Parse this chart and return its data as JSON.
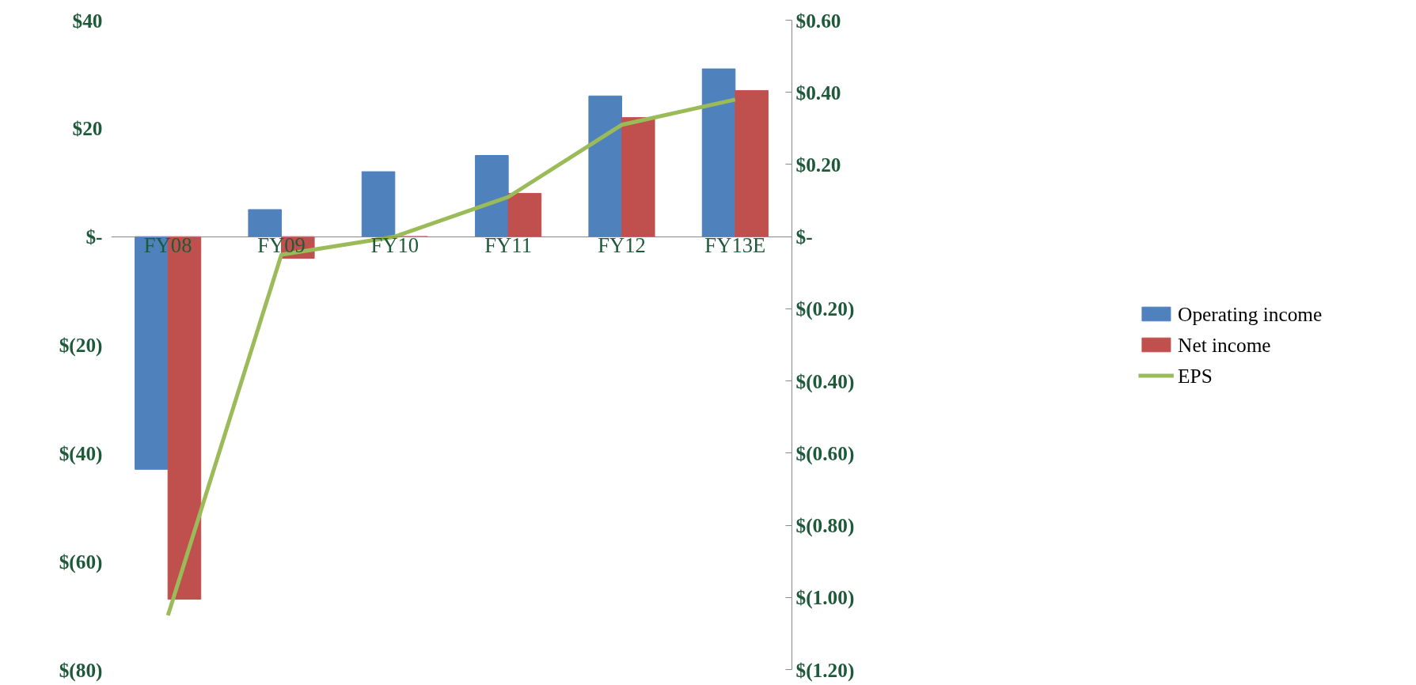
{
  "chart_data": {
    "type": "bar",
    "categories": [
      "FY08",
      "FY09",
      "FY10",
      "FY11",
      "FY12",
      "FY13E"
    ],
    "series": [
      {
        "name": "Operating income",
        "color": "#4f81bd",
        "values": [
          -43,
          5,
          12,
          15,
          26,
          31
        ]
      },
      {
        "name": "Net income",
        "color": "#c0504d",
        "values": [
          -67,
          -4,
          0,
          8,
          22,
          27
        ]
      },
      {
        "name": "EPS",
        "color": "#9bbb59",
        "type": "line",
        "axis": "y2",
        "values": [
          -1.05,
          -0.05,
          0.0,
          0.11,
          0.31,
          0.38
        ]
      }
    ],
    "ylim": [
      -80,
      40
    ],
    "yticks": [
      {
        "value": -80,
        "label": "$(80)"
      },
      {
        "value": -60,
        "label": "$(60)"
      },
      {
        "value": -40,
        "label": "$(40)"
      },
      {
        "value": -20,
        "label": "$(20)"
      },
      {
        "value": 0,
        "label": "$-"
      },
      {
        "value": 20,
        "label": "$20"
      },
      {
        "value": 40,
        "label": "$40"
      }
    ],
    "y2lim": [
      -1.2,
      0.6
    ],
    "y2ticks": [
      {
        "value": -1.2,
        "label": "$(1.20)"
      },
      {
        "value": -1.0,
        "label": "$(1.00)"
      },
      {
        "value": -0.8,
        "label": "$(0.80)"
      },
      {
        "value": -0.6,
        "label": "$(0.60)"
      },
      {
        "value": -0.4,
        "label": "$(0.40)"
      },
      {
        "value": -0.2,
        "label": "$(0.20)"
      },
      {
        "value": 0,
        "label": "$-"
      },
      {
        "value": 0.2,
        "label": "$0.20"
      },
      {
        "value": 0.4,
        "label": "$0.40"
      },
      {
        "value": 0.6,
        "label": "$0.60"
      }
    ],
    "grid": false,
    "legend": "right",
    "marker": "none",
    "line_style": "solid"
  }
}
